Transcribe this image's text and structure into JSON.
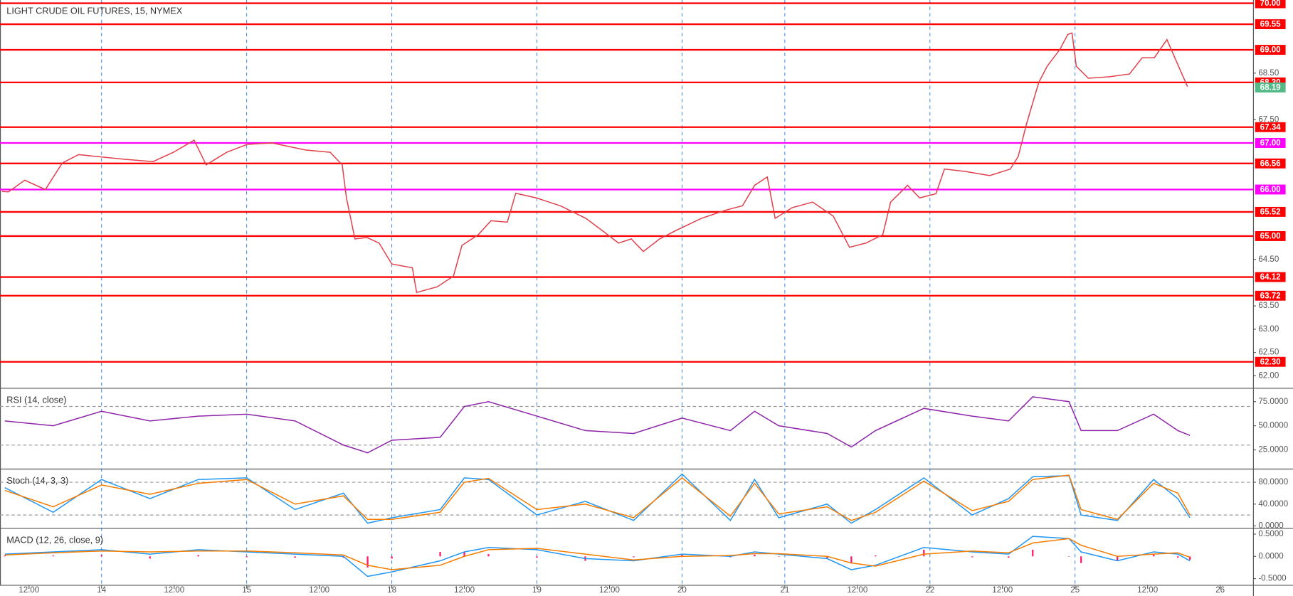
{
  "chart_data": [
    {
      "type": "line",
      "title": "LIGHT CRUDE OIL FUTURES, 15, NYMEX",
      "xlim": [
        -16.8,
        190.5
      ],
      "ylim": [
        61.75,
        70.07
      ],
      "xticks": [
        {
          "value": -12,
          "label": "12:00",
          "grid": false
        },
        {
          "value": 0,
          "label": "14",
          "grid": true
        },
        {
          "value": 12,
          "label": "12:00",
          "grid": false
        },
        {
          "value": 24,
          "label": "15",
          "grid": true
        },
        {
          "value": 36,
          "label": "12:00",
          "grid": false
        },
        {
          "value": 48,
          "label": "18",
          "grid": true
        },
        {
          "value": 60,
          "label": "12:00",
          "grid": false
        },
        {
          "value": 72,
          "label": "19",
          "grid": true
        },
        {
          "value": 84,
          "label": "12:00",
          "grid": false
        },
        {
          "value": 96,
          "label": "20",
          "grid": true
        },
        {
          "value": 113,
          "label": "21",
          "grid": true
        },
        {
          "value": 125,
          "label": "12:00",
          "grid": false
        },
        {
          "value": 137,
          "label": "22",
          "grid": true
        },
        {
          "value": 149,
          "label": "12:00",
          "grid": false
        },
        {
          "value": 161,
          "label": "25",
          "grid": true
        },
        {
          "value": 173,
          "label": "12:00",
          "grid": false
        },
        {
          "value": 185,
          "label": "26",
          "grid": false
        }
      ],
      "yticks": [
        {
          "value": 62,
          "label": "62.00"
        },
        {
          "value": 62.5,
          "label": "62.50"
        },
        {
          "value": 63,
          "label": "63.00"
        },
        {
          "value": 63.5,
          "label": "63.50"
        },
        {
          "value": 64.5,
          "label": "64.50"
        },
        {
          "value": 67.5,
          "label": "67.50"
        },
        {
          "value": 68.5,
          "label": "68.50"
        }
      ],
      "grid": false,
      "price_levels": [
        {
          "value": 70,
          "label": "70.00",
          "color": "#ff0000"
        },
        {
          "value": 69.55,
          "label": "69.55",
          "color": "#ff0000"
        },
        {
          "value": 69,
          "label": "69.00",
          "color": "#ff0000"
        },
        {
          "value": 68.3,
          "label": "68.30",
          "color": "#ff0000"
        },
        {
          "value": 67.34,
          "label": "67.34",
          "color": "#ff0000"
        },
        {
          "value": 67,
          "label": "67.00",
          "color": "#ff00ff"
        },
        {
          "value": 66.56,
          "label": "66.56",
          "color": "#ff0000"
        },
        {
          "value": 66,
          "label": "66.00",
          "color": "#ff00ff"
        },
        {
          "value": 65.52,
          "label": "65.52",
          "color": "#ff0000"
        },
        {
          "value": 65,
          "label": "65.00",
          "color": "#ff0000"
        },
        {
          "value": 64.12,
          "label": "64.12",
          "color": "#ff0000"
        },
        {
          "value": 63.72,
          "label": "63.72",
          "color": "#ff0000"
        },
        {
          "value": 62.3,
          "label": "62.30",
          "color": "#ff0000"
        }
      ],
      "last": {
        "value": 68.19,
        "label": "68.19",
        "color": "#53b987"
      },
      "x": [
        -16.5,
        -15.4,
        -12.7,
        -9.3,
        -6.5,
        -3.8,
        3.7,
        8.5,
        11.9,
        15.3,
        17.3,
        20.7,
        24.1,
        28.2,
        33.7,
        37.8,
        39.8,
        40.5,
        41.9,
        43.9,
        45.9,
        48.0,
        51.4,
        52.1,
        55.5,
        58.2,
        59.6,
        62.3,
        64.4,
        67.1,
        68.5,
        71.9,
        75.9,
        80.1,
        82.8,
        85.5,
        87.6,
        89.6,
        92.3,
        95.0,
        99.2,
        103.3,
        106.0,
        108.0,
        110.1,
        111.4,
        114.2,
        117.6,
        121.0,
        123.7,
        126.4,
        129.2,
        130.5,
        133.3,
        135.3,
        138.0,
        139.4,
        142.8,
        146.9,
        150.3,
        151.6,
        153.0,
        155.0,
        156.4,
        158.5,
        159.8,
        160.5,
        161.2,
        163.2,
        166.6,
        170.0,
        172.1,
        174.1,
        176.2,
        177.5,
        179.6
      ],
      "series": [
        {
          "color": "#e0404b",
          "values": [
            65.96,
            65.95,
            66.2,
            66.0,
            66.57,
            66.75,
            66.65,
            66.6,
            66.8,
            67.06,
            66.53,
            66.8,
            66.97,
            67.0,
            66.85,
            66.8,
            66.53,
            65.82,
            64.94,
            64.97,
            64.85,
            64.4,
            64.32,
            63.79,
            63.91,
            64.14,
            64.8,
            65.03,
            65.33,
            65.3,
            65.92,
            65.82,
            65.65,
            65.38,
            65.12,
            64.85,
            64.94,
            64.67,
            64.94,
            65.12,
            65.38,
            65.56,
            65.65,
            66.09,
            66.27,
            65.38,
            65.61,
            65.73,
            65.43,
            64.76,
            64.85,
            65.03,
            65.73,
            66.09,
            65.82,
            65.91,
            66.44,
            66.39,
            66.3,
            66.44,
            66.71,
            67.42,
            68.3,
            68.65,
            69.01,
            69.33,
            69.36,
            68.65,
            68.39,
            68.42,
            68.48,
            68.83,
            68.83,
            69.22,
            68.83,
            68.21
          ]
        }
      ]
    },
    {
      "type": "line",
      "title": "RSI (14, close)",
      "xlim": [
        -16.8,
        190.5
      ],
      "ylim": [
        6,
        88
      ],
      "yticks": [
        {
          "value": 75,
          "label": "75.0000"
        },
        {
          "value": 50,
          "label": "50.0000"
        },
        {
          "value": 25,
          "label": "25.0000"
        }
      ],
      "levels": [
        70,
        30
      ],
      "x": [
        -16,
        -8,
        0,
        8,
        16,
        24,
        32,
        40,
        44,
        48,
        56,
        60,
        64,
        72,
        80,
        88,
        96,
        104,
        108,
        112,
        120,
        124,
        128,
        136,
        144,
        150,
        154,
        160,
        162,
        168,
        174,
        178,
        180
      ],
      "series": [
        {
          "color": "#8e24aa",
          "values": [
            55,
            50,
            65,
            55,
            60,
            62,
            55,
            30,
            22,
            35,
            38,
            70,
            75,
            60,
            45,
            42,
            58,
            45,
            65,
            50,
            42,
            28,
            45,
            68,
            60,
            55,
            80,
            75,
            45,
            45,
            62,
            45,
            40
          ]
        }
      ]
    },
    {
      "type": "line",
      "title": "Stoch (14, 3, 3)",
      "xlim": [
        -16.8,
        190.5
      ],
      "ylim": [
        -3,
        102.6
      ],
      "yticks": [
        {
          "value": 80,
          "label": "80.0000"
        },
        {
          "value": 40,
          "label": "40.0000"
        },
        {
          "value": 0,
          "label": "0.0000"
        }
      ],
      "levels": [
        80,
        20
      ],
      "x": [
        -16,
        -8,
        0,
        8,
        16,
        24,
        32,
        40,
        44,
        48,
        56,
        60,
        64,
        72,
        80,
        88,
        96,
        104,
        108,
        112,
        120,
        124,
        128,
        136,
        144,
        150,
        154,
        160,
        162,
        168,
        174,
        178,
        180
      ],
      "series": [
        {
          "color": "#2196f3",
          "values": [
            70,
            25,
            85,
            50,
            85,
            88,
            30,
            60,
            5,
            15,
            30,
            88,
            85,
            20,
            45,
            10,
            95,
            10,
            85,
            15,
            40,
            5,
            30,
            88,
            20,
            50,
            90,
            92,
            20,
            10,
            85,
            50,
            15
          ]
        },
        {
          "color": "#f57c00",
          "values": [
            65,
            35,
            75,
            58,
            78,
            85,
            40,
            55,
            12,
            12,
            25,
            80,
            87,
            30,
            40,
            15,
            88,
            18,
            78,
            22,
            35,
            10,
            25,
            82,
            28,
            45,
            85,
            93,
            30,
            12,
            78,
            60,
            20
          ]
        }
      ]
    },
    {
      "type": "line",
      "title": "MACD (12, 26, close, 9)",
      "xlim": [
        -16.8,
        190.5
      ],
      "ylim": [
        -0.65,
        0.61
      ],
      "yticks": [
        {
          "value": 0.5,
          "label": "0.5000"
        },
        {
          "value": 0,
          "label": "0.0000"
        },
        {
          "value": -0.5,
          "label": "-0.5000"
        }
      ],
      "x": [
        -16,
        -8,
        0,
        8,
        16,
        24,
        32,
        40,
        44,
        48,
        56,
        60,
        64,
        72,
        80,
        88,
        96,
        104,
        108,
        112,
        120,
        124,
        128,
        136,
        144,
        150,
        154,
        160,
        162,
        168,
        174,
        178,
        180
      ],
      "series": [
        {
          "style": "histogram",
          "color": "#ff1a6e",
          "values": [
            0.02,
            0.02,
            0.03,
            -0.05,
            0.03,
            -0.02,
            -0.03,
            -0.03,
            -0.25,
            -0.05,
            0.1,
            0.1,
            0.05,
            -0.03,
            -0.1,
            -0.02,
            0.05,
            -0.02,
            0.04,
            -0.01,
            -0.05,
            -0.15,
            0.02,
            0.15,
            -0.02,
            -0.03,
            0.15,
            0.0,
            -0.15,
            -0.1,
            0.05,
            -0.03,
            -0.08
          ]
        },
        {
          "color": "#2196f3",
          "values": [
            0.05,
            0.1,
            0.15,
            0.05,
            0.15,
            0.1,
            0.05,
            0.0,
            -0.45,
            -0.35,
            -0.1,
            0.1,
            0.2,
            0.15,
            -0.05,
            -0.1,
            0.05,
            0.0,
            0.1,
            0.05,
            -0.05,
            -0.3,
            -0.2,
            0.2,
            0.1,
            0.05,
            0.45,
            0.4,
            0.1,
            -0.1,
            0.1,
            0.05,
            -0.1
          ]
        },
        {
          "color": "#f57c00",
          "values": [
            0.03,
            0.08,
            0.12,
            0.1,
            0.12,
            0.12,
            0.08,
            0.03,
            -0.2,
            -0.3,
            -0.2,
            0.0,
            0.15,
            0.18,
            0.05,
            -0.08,
            0.0,
            0.02,
            0.06,
            0.06,
            0.0,
            -0.15,
            -0.22,
            0.05,
            0.12,
            0.08,
            0.3,
            0.4,
            0.25,
            0.0,
            0.05,
            0.08,
            -0.02
          ]
        }
      ]
    }
  ]
}
